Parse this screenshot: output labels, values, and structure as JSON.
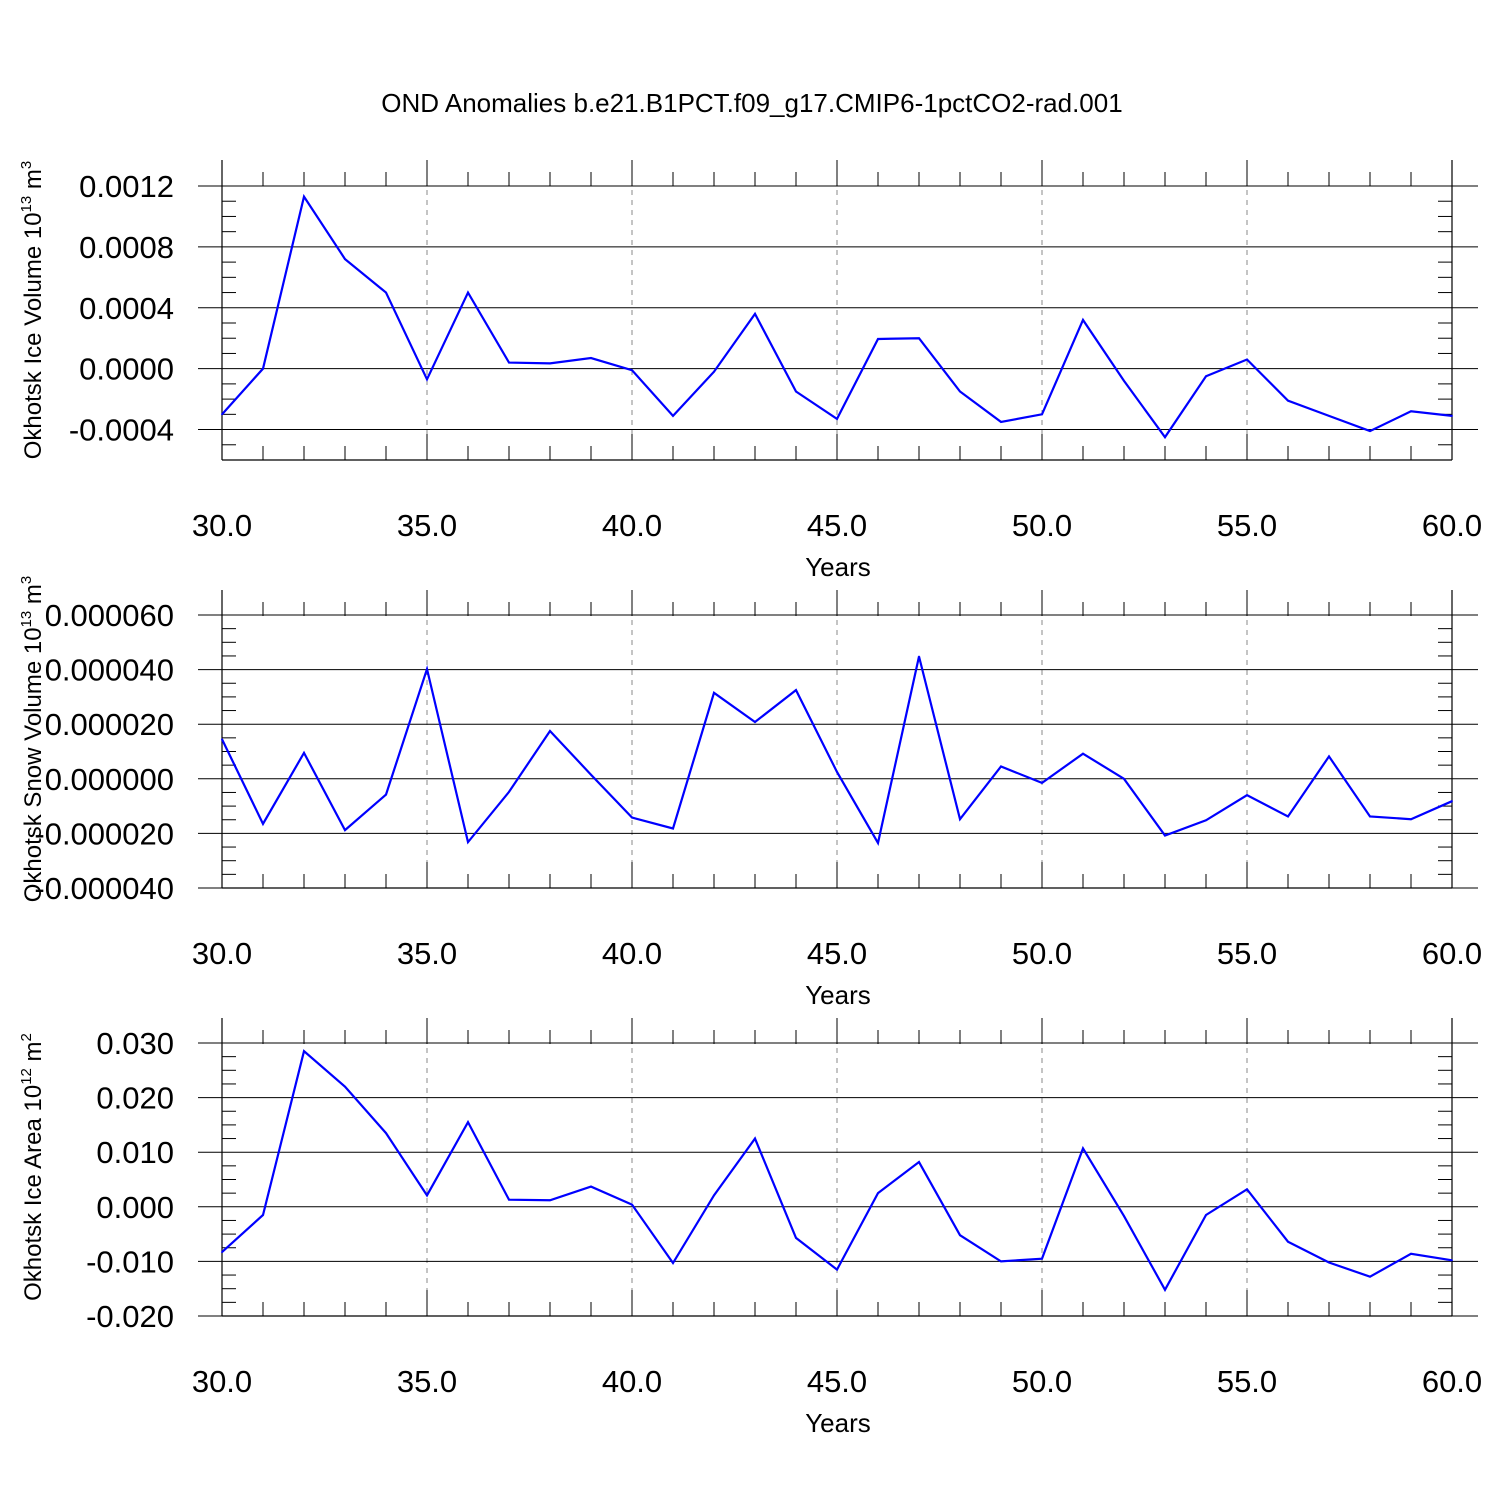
{
  "figure": {
    "title": "OND Anomalies b.e21.B1PCT.f09_g17.CMIP6-1pctCO2-rad.001"
  },
  "colors": {
    "line": "#0000ff",
    "axis": "#000000",
    "grid": "#888888"
  },
  "chart_data": [
    {
      "type": "line",
      "ylabel": "Okhotsk Ice Volume 10",
      "ylabel_sup": "13",
      "ylabel_unit": " m",
      "ylabel_unit_sup": "3",
      "xlabel": "Years",
      "xlim": [
        30,
        60
      ],
      "ylim": [
        -0.0006,
        0.0012
      ],
      "x_ticks": [
        30,
        35,
        40,
        45,
        50,
        55,
        60
      ],
      "x_tick_labels": [
        "30.0",
        "35.0",
        "40.0",
        "45.0",
        "50.0",
        "55.0",
        "60.0"
      ],
      "y_ticks": [
        -0.0004,
        0.0,
        0.0004,
        0.0008,
        0.0012
      ],
      "y_tick_labels": [
        "-0.0004",
        "0.0000",
        "0.0004",
        "0.0008",
        "0.0012"
      ],
      "y_minor_step": 0.0001,
      "x_grid": true,
      "series": [
        {
          "x": [
            30,
            31,
            32,
            33,
            34,
            35,
            36,
            37,
            38,
            39,
            40,
            41,
            42,
            43,
            44,
            45,
            46,
            47,
            48,
            49,
            50,
            51,
            52,
            53,
            54,
            55,
            56,
            57,
            58,
            59,
            60
          ],
          "values": [
            -0.0003,
            0.0,
            0.00113,
            0.00072,
            0.0005,
            -7e-05,
            0.0005,
            4e-05,
            3.5e-05,
            7e-05,
            -1e-05,
            -0.00031,
            -2e-05,
            0.00036,
            -0.00015,
            -0.00033,
            0.000195,
            0.0002,
            -0.00015,
            -0.00035,
            -0.0003,
            0.00032,
            -8e-05,
            -0.00045,
            -5e-05,
            6e-05,
            -0.00021,
            -0.00031,
            -0.00041,
            -0.00028,
            -0.00031
          ]
        }
      ]
    },
    {
      "type": "line",
      "ylabel": "Okhotsk Snow Volume 10",
      "ylabel_sup": "13",
      "ylabel_unit": " m",
      "ylabel_unit_sup": "3",
      "xlabel": "Years",
      "xlim": [
        30,
        60
      ],
      "ylim": [
        -4e-05,
        6e-05
      ],
      "x_ticks": [
        30,
        35,
        40,
        45,
        50,
        55,
        60
      ],
      "x_tick_labels": [
        "30.0",
        "35.0",
        "40.0",
        "45.0",
        "50.0",
        "55.0",
        "60.0"
      ],
      "y_ticks": [
        -4e-05,
        -2e-05,
        0.0,
        2e-05,
        4e-05,
        6e-05
      ],
      "y_tick_labels": [
        "-0.000040",
        "-0.000020",
        "0.000000",
        "0.000020",
        "0.000040",
        "0.000060"
      ],
      "y_minor_step": 5e-06,
      "x_grid": true,
      "series": [
        {
          "x": [
            30,
            31,
            32,
            33,
            34,
            35,
            36,
            37,
            38,
            39,
            40,
            41,
            42,
            43,
            44,
            45,
            46,
            47,
            48,
            49,
            50,
            51,
            52,
            53,
            54,
            55,
            56,
            57,
            58,
            59,
            60
          ],
          "values": [
            1.45e-05,
            -1.65e-05,
            9.5e-06,
            -1.88e-05,
            -5.8e-06,
            4.02e-05,
            -2.32e-05,
            -4.8e-06,
            1.75e-05,
            1.5e-06,
            -1.42e-05,
            -1.82e-05,
            3.15e-05,
            2.08e-05,
            3.25e-05,
            2.5e-06,
            -2.35e-05,
            4.48e-05,
            -1.48e-05,
            4.5e-06,
            -1.5e-06,
            9.2e-06,
            0.0,
            -2.08e-05,
            -1.52e-05,
            -6e-06,
            -1.38e-05,
            8.2e-06,
            -1.38e-05,
            -1.48e-05,
            -8.2e-06
          ]
        }
      ]
    },
    {
      "type": "line",
      "ylabel": "Okhotsk Ice Area 10",
      "ylabel_sup": "12",
      "ylabel_unit": " m",
      "ylabel_unit_sup": "2",
      "xlabel": "Years",
      "xlim": [
        30,
        60
      ],
      "ylim": [
        -0.02,
        0.03
      ],
      "x_ticks": [
        30,
        35,
        40,
        45,
        50,
        55,
        60
      ],
      "x_tick_labels": [
        "30.0",
        "35.0",
        "40.0",
        "45.0",
        "50.0",
        "55.0",
        "60.0"
      ],
      "y_ticks": [
        -0.02,
        -0.01,
        0.0,
        0.01,
        0.02,
        0.03
      ],
      "y_tick_labels": [
        "-0.020",
        "-0.010",
        "0.000",
        "0.010",
        "0.020",
        "0.030"
      ],
      "y_minor_step": 0.0025,
      "x_grid": true,
      "series": [
        {
          "x": [
            30,
            31,
            32,
            33,
            34,
            35,
            36,
            37,
            38,
            39,
            40,
            41,
            42,
            43,
            44,
            45,
            46,
            47,
            48,
            49,
            50,
            51,
            52,
            53,
            54,
            55,
            56,
            57,
            58,
            59,
            60
          ],
          "values": [
            -0.0083,
            -0.0015,
            0.0285,
            0.022,
            0.0135,
            0.0021,
            0.0155,
            0.0013,
            0.0012,
            0.0037,
            0.0004,
            -0.0103,
            0.0021,
            0.0125,
            -0.0057,
            -0.0115,
            0.0025,
            0.0082,
            -0.0052,
            -0.01,
            -0.0095,
            0.0107,
            -0.0017,
            -0.0152,
            -0.0015,
            0.0032,
            -0.0064,
            -0.0102,
            -0.0128,
            -0.0086,
            -0.0098
          ]
        }
      ]
    }
  ]
}
